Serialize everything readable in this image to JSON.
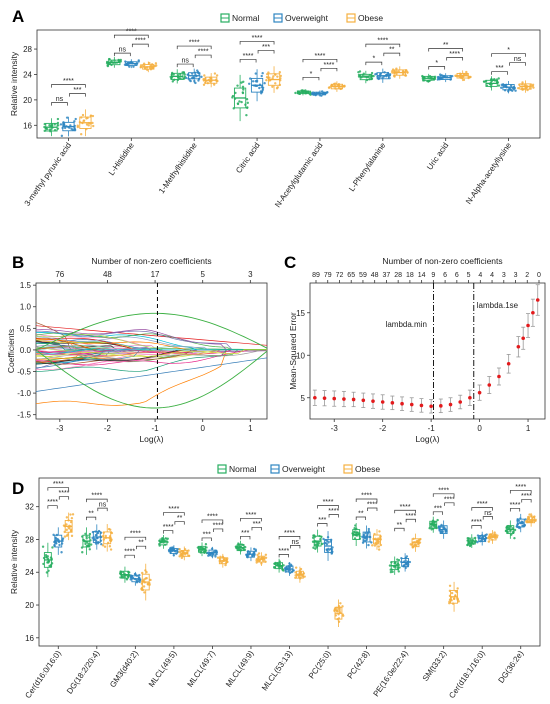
{
  "figure": {
    "panel_letters": [
      "A",
      "B",
      "C",
      "D"
    ]
  },
  "chart_data": [
    {
      "panel": "A",
      "type": "box",
      "ylabel": "Relative intensity",
      "ylim": [
        14,
        31
      ],
      "yticks": [
        16,
        20,
        24,
        28
      ],
      "legend": {
        "placement": "top",
        "entries": [
          "Normal",
          "Overweight",
          "Obese"
        ]
      },
      "colors": {
        "Normal": "#27ae60",
        "Overweight": "#2e86c1",
        "Obese": "#f5b041"
      },
      "categories": [
        "3-methyl pyruvic acid",
        "L-Histidine",
        "1-Methylhistidine",
        "Citric acid",
        "N-Acetylglutamic acid",
        "L-Phenylalanine",
        "Uric acid",
        "N-Alpha-acetyllysine"
      ],
      "series": [
        {
          "name": "Normal",
          "medians": [
            15.7,
            25.9,
            23.7,
            20.3,
            21.2,
            23.6,
            23.4,
            22.6
          ]
        },
        {
          "name": "Overweight",
          "medians": [
            15.8,
            25.7,
            23.8,
            22.3,
            21.0,
            23.8,
            23.5,
            22.0
          ]
        },
        {
          "name": "Obese",
          "medians": [
            16.4,
            25.2,
            23.1,
            23.2,
            22.1,
            24.3,
            23.8,
            22.1
          ]
        }
      ],
      "spreads": [
        [
          1.0,
          1.1,
          1.5
        ],
        [
          0.6,
          0.5,
          0.6
        ],
        [
          0.8,
          0.8,
          0.8
        ],
        [
          2.6,
          1.8,
          1.5
        ],
        [
          0.35,
          0.35,
          0.6
        ],
        [
          0.7,
          0.8,
          0.7
        ],
        [
          0.5,
          0.5,
          0.6
        ],
        [
          0.8,
          0.7,
          0.7
        ]
      ],
      "significance": [
        [
          "ns",
          "***",
          "****"
        ],
        [
          "ns",
          "****",
          "****"
        ],
        [
          "ns",
          "****",
          "****"
        ],
        [
          "****",
          "***",
          "****"
        ],
        [
          "*",
          "****",
          "****"
        ],
        [
          "*",
          "**",
          "****"
        ],
        [
          "*",
          "****",
          "**"
        ],
        [
          "***",
          "ns",
          "*"
        ]
      ]
    },
    {
      "panel": "B",
      "type": "line",
      "xlabel": "Log(λ)",
      "ylabel": "Coefficients",
      "top_axis_label": "Number of non-zero coefficients",
      "top_ticks": [
        "76",
        "48",
        "17",
        "5",
        "3"
      ],
      "top_tick_positions": [
        -3.0,
        -2.0,
        -1.0,
        0.0,
        1.0
      ],
      "xlim": [
        -3.5,
        1.35
      ],
      "ylim": [
        -1.6,
        1.55
      ],
      "xticks": [
        -3,
        -2,
        -1,
        0,
        1
      ],
      "yticks": [
        -1.5,
        -1.0,
        -0.5,
        0.0,
        0.5,
        1.0,
        1.5
      ],
      "vline_x": -0.95
    },
    {
      "panel": "C",
      "type": "scatter",
      "xlabel": "Log(λ)",
      "ylabel": "Mean-Squared Error",
      "top_axis_label": "Number of non-zero coefficients",
      "top_ticks": [
        "89",
        "79",
        "72",
        "65",
        "59",
        "48",
        "37",
        "28",
        "18",
        "14",
        "9",
        "6",
        "6",
        "5",
        "4",
        "4",
        "3",
        "3",
        "2",
        "0"
      ],
      "xlim": [
        -3.5,
        1.35
      ],
      "ylim": [
        2.5,
        18.5
      ],
      "xticks": [
        -3,
        -2,
        -1,
        0,
        1
      ],
      "yticks": [
        5,
        10,
        15
      ],
      "annotations": [
        {
          "text": "lambda.min",
          "x": -0.95
        },
        {
          "text": "lambda.1se",
          "x": -0.12
        }
      ],
      "x": [
        -3.4,
        -3.2,
        -3.0,
        -2.8,
        -2.6,
        -2.4,
        -2.2,
        -2.0,
        -1.8,
        -1.6,
        -1.4,
        -1.2,
        -1.0,
        -0.8,
        -0.6,
        -0.4,
        -0.2,
        0.0,
        0.2,
        0.4,
        0.6,
        0.8,
        0.9,
        1.0,
        1.1,
        1.2
      ],
      "y": [
        5.0,
        4.95,
        4.9,
        4.85,
        4.8,
        4.7,
        4.6,
        4.5,
        4.4,
        4.3,
        4.2,
        4.1,
        4.0,
        4.05,
        4.2,
        4.5,
        5.0,
        5.6,
        6.5,
        7.5,
        9.0,
        11.0,
        12.0,
        13.5,
        15.0,
        16.5
      ],
      "err": [
        0.9,
        0.9,
        0.9,
        0.9,
        0.85,
        0.85,
        0.85,
        0.85,
        0.8,
        0.8,
        0.8,
        0.8,
        0.8,
        0.8,
        0.8,
        0.8,
        0.9,
        0.9,
        1.0,
        1.0,
        1.1,
        1.2,
        1.3,
        1.4,
        1.6,
        1.8
      ]
    },
    {
      "panel": "D",
      "type": "box",
      "ylabel": "Relative intensity",
      "ylim": [
        15,
        35.5
      ],
      "yticks": [
        16,
        20,
        24,
        28,
        32
      ],
      "legend": {
        "placement": "top",
        "entries": [
          "Normal",
          "Overweight",
          "Obese"
        ]
      },
      "colors": {
        "Normal": "#27ae60",
        "Overweight": "#2e86c1",
        "Obese": "#f5b041"
      },
      "categories": [
        "Cer(d16:0/16:0)",
        "DG(18:2/20:4)",
        "GM3(d40:2)",
        "MLCL(49:5)",
        "MLCL(49:7)",
        "MLCL(49:9)",
        "MLCL(53:13)",
        "PC(25:0)",
        "PC(42:8)",
        "PE(16:0e/22:4)",
        "SM(t33:2)",
        "Cer(d18:1/16:0)",
        "DG(36:2e)"
      ],
      "series": [
        {
          "name": "Normal",
          "medians": [
            25.5,
            27.8,
            23.7,
            27.7,
            26.8,
            27.0,
            24.8,
            27.8,
            28.6,
            24.8,
            29.8,
            27.8,
            29.2
          ]
        },
        {
          "name": "Overweight",
          "medians": [
            27.8,
            28.3,
            23.2,
            26.6,
            26.4,
            26.2,
            24.4,
            27.2,
            28.3,
            25.2,
            29.2,
            28.1,
            30.0
          ]
        },
        {
          "name": "Obese",
          "medians": [
            29.6,
            28.2,
            22.8,
            26.3,
            25.4,
            25.6,
            23.7,
            19.0,
            28.0,
            27.6,
            21.0,
            28.3,
            30.4
          ]
        }
      ],
      "spreads": [
        [
          1.5,
          1.2,
          1.2
        ],
        [
          1.2,
          1.1,
          1.2
        ],
        [
          0.7,
          0.6,
          1.6
        ],
        [
          0.6,
          0.5,
          0.6
        ],
        [
          0.6,
          0.5,
          0.6
        ],
        [
          0.6,
          0.6,
          0.6
        ],
        [
          0.6,
          0.6,
          0.7
        ],
        [
          1.0,
          1.3,
          1.2
        ],
        [
          1.0,
          1.0,
          0.9
        ],
        [
          0.8,
          0.8,
          0.8
        ],
        [
          0.7,
          0.8,
          1.3
        ],
        [
          0.6,
          0.6,
          0.6
        ],
        [
          0.8,
          0.8,
          0.6
        ]
      ],
      "significance": [
        [
          "****",
          "****",
          "****"
        ],
        [
          "**",
          "ns",
          "****"
        ],
        [
          "****",
          "**",
          "****"
        ],
        [
          "****",
          "**",
          "****"
        ],
        [
          "***",
          "****",
          "****"
        ],
        [
          "***",
          "***",
          "****"
        ],
        [
          "****",
          "ns",
          "****"
        ],
        [
          "***",
          "****",
          "****"
        ],
        [
          "**",
          "****",
          "****"
        ],
        [
          "**",
          "****",
          "****"
        ],
        [
          "***",
          "****",
          "****"
        ],
        [
          "****",
          "ns",
          "****"
        ],
        [
          "****",
          "****",
          "****"
        ]
      ]
    }
  ]
}
